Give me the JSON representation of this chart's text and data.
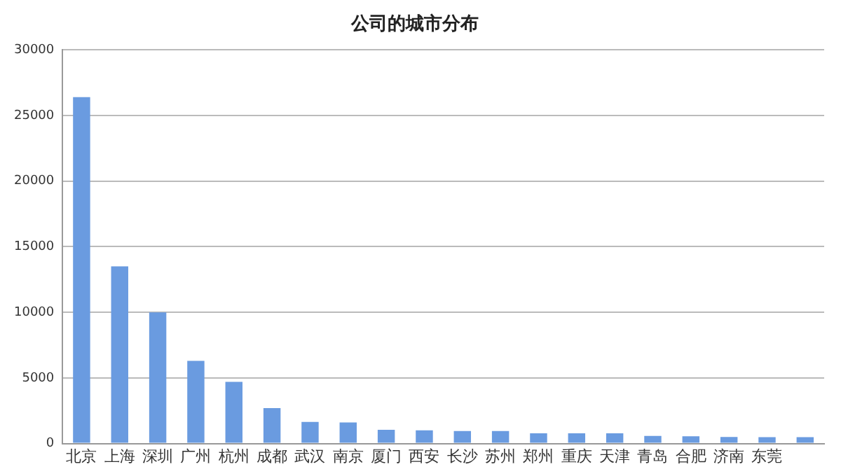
{
  "chart_data": {
    "type": "bar",
    "title": "公司的城市分布",
    "categories": [
      "北京",
      "上海",
      "深圳",
      "广州",
      "杭州",
      "成都",
      "武汉",
      "南京",
      "厦门",
      "西安",
      "长沙",
      "苏州",
      "郑州",
      "重庆",
      "天津",
      "青岛",
      "合肥",
      "济南",
      "东莞",
      null
    ],
    "values": [
      26400,
      13500,
      10000,
      6300,
      4700,
      2700,
      1650,
      1600,
      1050,
      1000,
      950,
      950,
      780,
      780,
      780,
      580,
      550,
      500,
      480,
      480
    ],
    "color": "#6a9be0",
    "ylim": [
      0,
      30000
    ],
    "yticks": [
      0,
      5000,
      10000,
      15000,
      20000,
      25000,
      30000
    ],
    "grid": "y",
    "legend": false
  }
}
